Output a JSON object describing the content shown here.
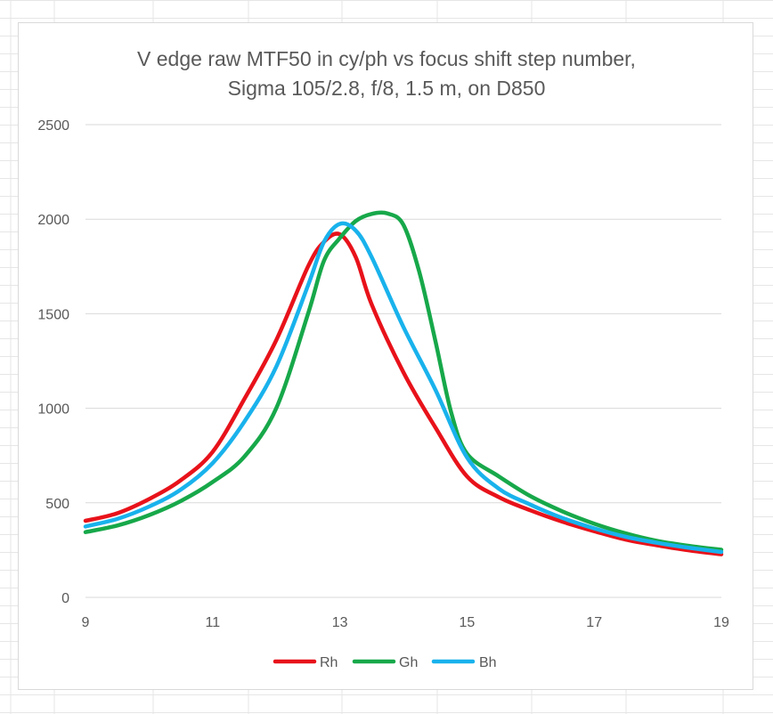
{
  "chart_data": {
    "type": "line",
    "title_lines": [
      "V edge raw MTF50 in cy/ph vs focus shift step number,",
      "Sigma 105/2.8, f/8, 1.5 m, on D850"
    ],
    "xlabel": "",
    "ylabel": "",
    "xlim": [
      9,
      19
    ],
    "ylim": [
      0,
      2500
    ],
    "x_ticks": [
      "9",
      "11",
      "13",
      "15",
      "17",
      "19"
    ],
    "y_ticks": [
      "0",
      "500",
      "1000",
      "1500",
      "2000",
      "2500"
    ],
    "grid": "horizontal",
    "legend_position": "bottom",
    "series": [
      {
        "name": "Rh",
        "color": "#e8121a",
        "points": [
          [
            9,
            405
          ],
          [
            9.5,
            445
          ],
          [
            10,
            520
          ],
          [
            10.5,
            620
          ],
          [
            11,
            770
          ],
          [
            11.5,
            1050
          ],
          [
            12,
            1360
          ],
          [
            12.5,
            1750
          ],
          [
            12.75,
            1880
          ],
          [
            13,
            1920
          ],
          [
            13.25,
            1800
          ],
          [
            13.5,
            1550
          ],
          [
            14,
            1190
          ],
          [
            14.5,
            900
          ],
          [
            15,
            640
          ],
          [
            15.5,
            530
          ],
          [
            16,
            460
          ],
          [
            16.5,
            400
          ],
          [
            17,
            350
          ],
          [
            17.5,
            305
          ],
          [
            18,
            275
          ],
          [
            18.5,
            248
          ],
          [
            19,
            228
          ]
        ]
      },
      {
        "name": "Gh",
        "color": "#17a84a",
        "points": [
          [
            9,
            345
          ],
          [
            9.5,
            380
          ],
          [
            10,
            435
          ],
          [
            10.5,
            510
          ],
          [
            11,
            610
          ],
          [
            11.5,
            745
          ],
          [
            12,
            1000
          ],
          [
            12.5,
            1500
          ],
          [
            12.75,
            1780
          ],
          [
            13,
            1900
          ],
          [
            13.25,
            1990
          ],
          [
            13.5,
            2028
          ],
          [
            13.75,
            2030
          ],
          [
            14,
            1970
          ],
          [
            14.25,
            1720
          ],
          [
            14.5,
            1360
          ],
          [
            14.75,
            980
          ],
          [
            15,
            760
          ],
          [
            15.5,
            640
          ],
          [
            16,
            535
          ],
          [
            16.5,
            455
          ],
          [
            17,
            390
          ],
          [
            17.5,
            338
          ],
          [
            18,
            298
          ],
          [
            18.5,
            272
          ],
          [
            19,
            252
          ]
        ]
      },
      {
        "name": "Bh",
        "color": "#19b2ec",
        "points": [
          [
            9,
            375
          ],
          [
            9.5,
            415
          ],
          [
            10,
            480
          ],
          [
            10.5,
            570
          ],
          [
            11,
            710
          ],
          [
            11.5,
            930
          ],
          [
            12,
            1220
          ],
          [
            12.5,
            1650
          ],
          [
            12.75,
            1880
          ],
          [
            13,
            1975
          ],
          [
            13.25,
            1940
          ],
          [
            13.5,
            1800
          ],
          [
            14,
            1430
          ],
          [
            14.5,
            1100
          ],
          [
            15,
            740
          ],
          [
            15.5,
            575
          ],
          [
            16,
            490
          ],
          [
            16.5,
            420
          ],
          [
            17,
            365
          ],
          [
            17.5,
            320
          ],
          [
            18,
            288
          ],
          [
            18.5,
            262
          ],
          [
            19,
            240
          ]
        ]
      }
    ]
  }
}
